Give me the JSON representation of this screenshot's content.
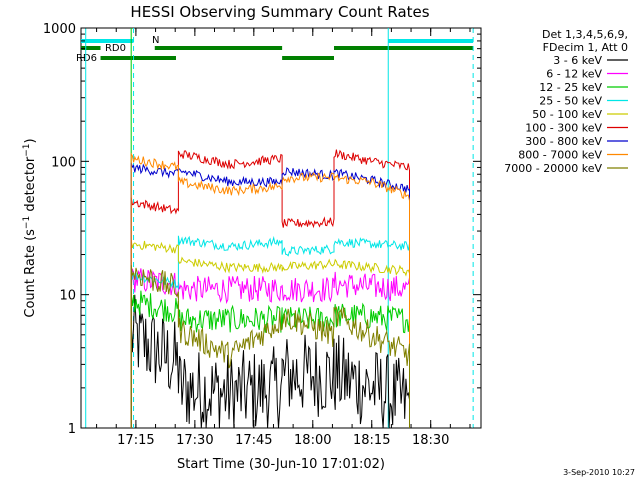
{
  "chart_data": {
    "type": "line",
    "title": "HESSI Observing Summary Count Rates",
    "xlabel": "Start Time (30-Jun-10 17:01:02)",
    "ylabel": "Count Rate (s-1 detector-1)",
    "ylabel_parts": {
      "base": "Count Rate (s",
      "exp1": "−1",
      "mid": " detector",
      "exp2": "−1",
      "end": ")"
    },
    "yscale": "log",
    "ylim": [
      1,
      1000
    ],
    "xlim": [
      17.0172,
      18.7133
    ],
    "x_unit": "hour of day (UT)",
    "x_ticks": [
      {
        "v": 17.25,
        "label": "17:15"
      },
      {
        "v": 17.5,
        "label": "17:30"
      },
      {
        "v": 17.75,
        "label": "17:45"
      },
      {
        "v": 18.0,
        "label": "18:00"
      },
      {
        "v": 18.25,
        "label": "18:15"
      },
      {
        "v": 18.5,
        "label": "18:30"
      }
    ],
    "y_ticks": [
      {
        "v": 1,
        "label": "1"
      },
      {
        "v": 10,
        "label": "10"
      },
      {
        "v": 100,
        "label": "100"
      },
      {
        "v": 1000,
        "label": "1000"
      }
    ],
    "legend_header": [
      "Det 1,3,4,5,6,9,",
      "FDecim 1, Att 0"
    ],
    "legend_placement": "right",
    "timestamp": "3-Sep-2010 10:27",
    "segments": [
      [
        17.23,
        17.43
      ],
      [
        17.43,
        17.87
      ],
      [
        17.87,
        18.09
      ],
      [
        18.09,
        18.41
      ]
    ],
    "series": [
      {
        "name": "3 - 6 keV",
        "color": "#000000",
        "segment_values": [
          [
            5.0,
            3.0
          ],
          [
            2.0,
            1.8,
            2.0
          ],
          [
            2.5,
            2.5
          ],
          [
            2.5,
            2.0,
            1.5
          ]
        ]
      },
      {
        "name": "6 - 12 keV",
        "color": "#ff00ff",
        "segment_values": [
          [
            13,
            12
          ],
          [
            11,
            11,
            11
          ],
          [
            11,
            11
          ],
          [
            12,
            11.5,
            11
          ]
        ]
      },
      {
        "name": "12 - 25 keV",
        "color": "#00cc00",
        "segment_values": [
          [
            9,
            7.5
          ],
          [
            6.5,
            6.5,
            6.5
          ],
          [
            6.5,
            6.5
          ],
          [
            7,
            6.8,
            6.5
          ]
        ]
      },
      {
        "name": "25 - 50 keV",
        "color": "#00e6e6",
        "segment_values": [
          [
            14,
            12
          ],
          [
            26,
            23,
            25
          ],
          [
            21,
            22
          ],
          [
            25,
            24,
            23
          ]
        ]
      },
      {
        "name": "50 - 100 keV",
        "color": "#cccc00",
        "segment_values": [
          [
            24,
            22
          ],
          [
            18,
            16,
            16
          ],
          [
            16,
            17
          ],
          [
            17,
            16,
            15
          ]
        ]
      },
      {
        "name": "100 - 300 keV",
        "color": "#dd0000",
        "segment_values": [
          [
            50,
            42
          ],
          [
            115,
            95,
            105
          ],
          [
            34,
            35
          ],
          [
            115,
            100,
            90
          ]
        ]
      },
      {
        "name": "300 - 800 keV",
        "color": "#0000cc",
        "segment_values": [
          [
            90,
            80
          ],
          [
            85,
            70,
            70
          ],
          [
            85,
            78
          ],
          [
            82,
            72,
            62
          ]
        ]
      },
      {
        "name": "800 - 7000 keV",
        "color": "#ff8800",
        "segment_values": [
          [
            105,
            90
          ],
          [
            70,
            60,
            65
          ],
          [
            75,
            76
          ],
          [
            75,
            70,
            55
          ]
        ]
      },
      {
        "name": "7000 - 20000 keV",
        "color": "#808000",
        "segment_values": [
          [
            15,
            11
          ],
          [
            5.5,
            3.5,
            6.5
          ],
          [
            7,
            5
          ],
          [
            7,
            5,
            3.5
          ]
        ]
      }
    ],
    "flags": {
      "top_bars": [
        {
          "label": "N",
          "color": "#00e6e6",
          "ranges": [
            [
              17.0172,
              17.24
            ],
            [
              18.32,
              18.68
            ]
          ]
        },
        {
          "label": "RD0",
          "color": "#008000",
          "ranges": [
            [
              17.0172,
              17.1
            ],
            [
              17.33,
              17.87
            ],
            [
              18.09,
              18.68
            ]
          ]
        },
        {
          "label": "RD6",
          "color": "#008000",
          "ranges": [
            [
              17.1,
              17.42
            ],
            [
              17.87,
              18.09
            ]
          ]
        }
      ],
      "vertical_lines": [
        {
          "x": 17.0372,
          "color": "#00e6e6",
          "style": "solid"
        },
        {
          "x": 17.24,
          "color": "#00e6e6",
          "style": "dashed"
        },
        {
          "x": 18.32,
          "color": "#00e6e6",
          "style": "solid"
        },
        {
          "x": 18.68,
          "color": "#00e6e6",
          "style": "dashed"
        },
        {
          "x": 17.23,
          "color": "#00cc00",
          "style": "solid"
        }
      ]
    }
  }
}
